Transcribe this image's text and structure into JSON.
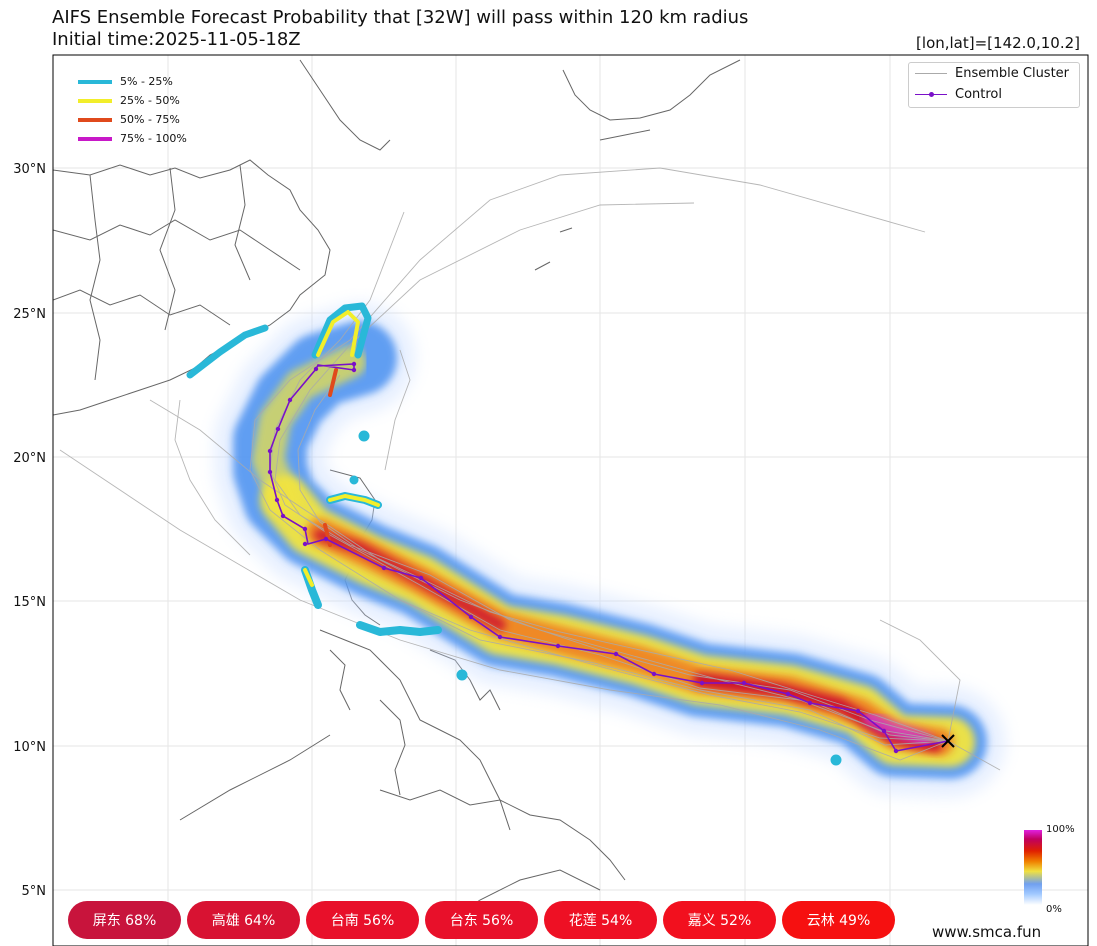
{
  "header": {
    "title_line1": "AIFS Ensemble Forecast Probability that [32W] will pass within 120 km radius",
    "title_line2": "Initial time:2025-11-05-18Z",
    "coordinates": "[lon,lat]=[142.0,10.2]"
  },
  "axis": {
    "lat_labels": [
      "30°N",
      "25°N",
      "20°N",
      "15°N",
      "10°N",
      "5°N"
    ]
  },
  "probability_legend": {
    "items": [
      {
        "label": "5% - 25%",
        "color": "#29b8d8"
      },
      {
        "label": "25% - 50%",
        "color": "#f2ee2a"
      },
      {
        "label": "50% - 75%",
        "color": "#e04a1c"
      },
      {
        "label": "75% - 100%",
        "color": "#c818c8"
      }
    ]
  },
  "track_legend": {
    "ensemble_label": "Ensemble Cluster",
    "control_label": "Control",
    "ensemble_color": "#aaaaaa",
    "control_color": "#7a10c8"
  },
  "colorbar": {
    "top": "100%",
    "bottom": "0%"
  },
  "badges": [
    {
      "text": "屏东 68%",
      "color": "#c8143c"
    },
    {
      "text": "高雄 64%",
      "color": "#d81232"
    },
    {
      "text": "台南 56%",
      "color": "#e8102a"
    },
    {
      "text": "台东 56%",
      "color": "#e8102a"
    },
    {
      "text": "花莲 54%",
      "color": "#ee1024"
    },
    {
      "text": "嘉义 52%",
      "color": "#f2101e"
    },
    {
      "text": "云林 49%",
      "color": "#f61010"
    }
  ],
  "footer": {
    "site": "www.smca.fun"
  }
}
